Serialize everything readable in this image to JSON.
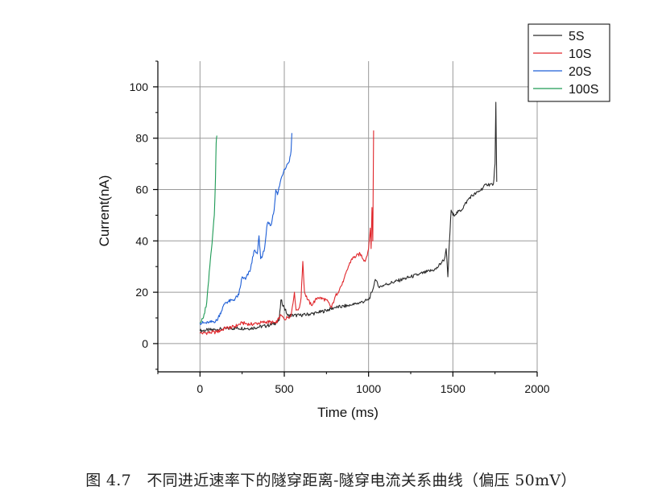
{
  "caption": "图 4.7　不同进近速率下的隧穿距离-隧穿电流关系曲线（偏压 50mV）",
  "chart_data": {
    "type": "line",
    "xlabel": "Time (ms)",
    "ylabel": "Current(nA)",
    "xlim": [
      -250,
      2000
    ],
    "ylim": [
      -11,
      110
    ],
    "xticks": [
      0,
      500,
      1000,
      1500,
      2000
    ],
    "yticks": [
      0,
      20,
      40,
      60,
      80,
      100
    ],
    "grid": true,
    "legend_position": "top-right",
    "series": [
      {
        "name": "5S",
        "color": "#2b2b2b",
        "points": [
          [
            0,
            5
          ],
          [
            100,
            5.5
          ],
          [
            200,
            6
          ],
          [
            300,
            6
          ],
          [
            400,
            7
          ],
          [
            450,
            8
          ],
          [
            470,
            9
          ],
          [
            480,
            17
          ],
          [
            500,
            14
          ],
          [
            520,
            11
          ],
          [
            600,
            11
          ],
          [
            700,
            12
          ],
          [
            800,
            14
          ],
          [
            900,
            15
          ],
          [
            1000,
            17
          ],
          [
            1020,
            20
          ],
          [
            1040,
            25
          ],
          [
            1060,
            22
          ],
          [
            1100,
            23
          ],
          [
            1200,
            25
          ],
          [
            1300,
            27
          ],
          [
            1400,
            29
          ],
          [
            1450,
            33
          ],
          [
            1460,
            37
          ],
          [
            1470,
            26
          ],
          [
            1480,
            40
          ],
          [
            1490,
            52
          ],
          [
            1500,
            50
          ],
          [
            1550,
            52
          ],
          [
            1600,
            57
          ],
          [
            1650,
            59
          ],
          [
            1700,
            62
          ],
          [
            1740,
            62
          ],
          [
            1750,
            70
          ],
          [
            1755,
            94
          ],
          [
            1760,
            63
          ]
        ]
      },
      {
        "name": "10S",
        "color": "#e0262b",
        "points": [
          [
            0,
            4
          ],
          [
            100,
            4.5
          ],
          [
            150,
            6
          ],
          [
            200,
            6.5
          ],
          [
            250,
            8
          ],
          [
            300,
            7.5
          ],
          [
            400,
            8.5
          ],
          [
            450,
            8
          ],
          [
            480,
            11
          ],
          [
            500,
            9.5
          ],
          [
            540,
            11
          ],
          [
            560,
            20
          ],
          [
            570,
            13
          ],
          [
            590,
            14
          ],
          [
            600,
            18
          ],
          [
            610,
            32
          ],
          [
            620,
            20
          ],
          [
            640,
            17
          ],
          [
            660,
            15
          ],
          [
            700,
            18
          ],
          [
            750,
            17
          ],
          [
            780,
            14
          ],
          [
            800,
            18
          ],
          [
            850,
            24
          ],
          [
            880,
            30
          ],
          [
            900,
            33
          ],
          [
            950,
            35
          ],
          [
            980,
            32
          ],
          [
            1000,
            37
          ],
          [
            1010,
            45
          ],
          [
            1015,
            37
          ],
          [
            1020,
            53
          ],
          [
            1025,
            40
          ],
          [
            1030,
            83
          ]
        ]
      },
      {
        "name": "20S",
        "color": "#1f5fd6",
        "points": [
          [
            0,
            8
          ],
          [
            50,
            8
          ],
          [
            100,
            9
          ],
          [
            150,
            16
          ],
          [
            200,
            17
          ],
          [
            230,
            19
          ],
          [
            250,
            26
          ],
          [
            270,
            25
          ],
          [
            300,
            29
          ],
          [
            320,
            36
          ],
          [
            340,
            35
          ],
          [
            350,
            42
          ],
          [
            360,
            33
          ],
          [
            380,
            36
          ],
          [
            400,
            47
          ],
          [
            420,
            46
          ],
          [
            440,
            52
          ],
          [
            450,
            60
          ],
          [
            460,
            58
          ],
          [
            480,
            64
          ],
          [
            500,
            68
          ],
          [
            520,
            70
          ],
          [
            530,
            71
          ],
          [
            540,
            75
          ],
          [
            545,
            82
          ]
        ]
      },
      {
        "name": "100S",
        "color": "#1e9a55",
        "points": [
          [
            0,
            8
          ],
          [
            20,
            10
          ],
          [
            40,
            16
          ],
          [
            55,
            28
          ],
          [
            65,
            35
          ],
          [
            75,
            42
          ],
          [
            85,
            50
          ],
          [
            92,
            65
          ],
          [
            96,
            78
          ],
          [
            100,
            81
          ]
        ]
      }
    ]
  }
}
